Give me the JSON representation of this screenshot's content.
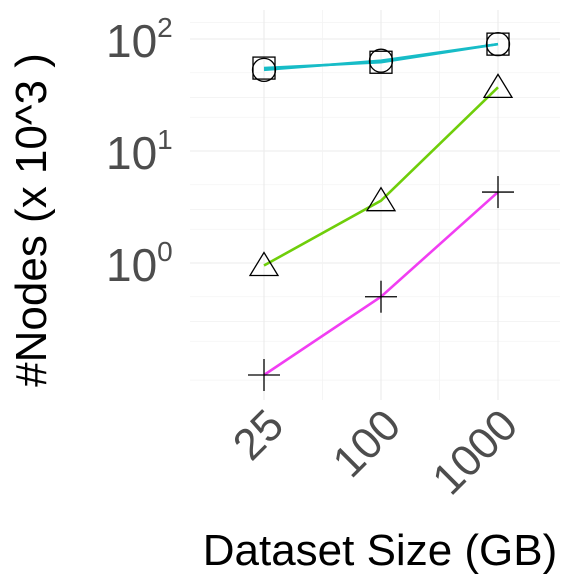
{
  "chart_data": {
    "type": "line",
    "xlabel": "Dataset Size (GB)",
    "ylabel": "#Nodes (x 10^3 )",
    "x_categories": [
      "25",
      "100",
      "1000"
    ],
    "y_scale": "log10",
    "y_ticks": [
      {
        "value": 1,
        "base": "10",
        "exp": "0"
      },
      {
        "value": 10,
        "base": "10",
        "exp": "1"
      },
      {
        "value": 100,
        "base": "10",
        "exp": "2"
      }
    ],
    "ylim": [
      0.07,
      160
    ],
    "grid": true,
    "legend": "none",
    "series": [
      {
        "marker": "square",
        "color": "#17bcc7",
        "values": [
          55,
          62,
          90
        ]
      },
      {
        "marker": "circle",
        "color": "#17bcc7",
        "values": [
          53,
          64,
          90
        ]
      },
      {
        "marker": "triangle",
        "color": "#6fce0a",
        "values": [
          0.95,
          3.6,
          37
        ]
      },
      {
        "marker": "plus",
        "color": "#f13ef2",
        "values": [
          0.1,
          0.5,
          4.3
        ]
      }
    ]
  }
}
